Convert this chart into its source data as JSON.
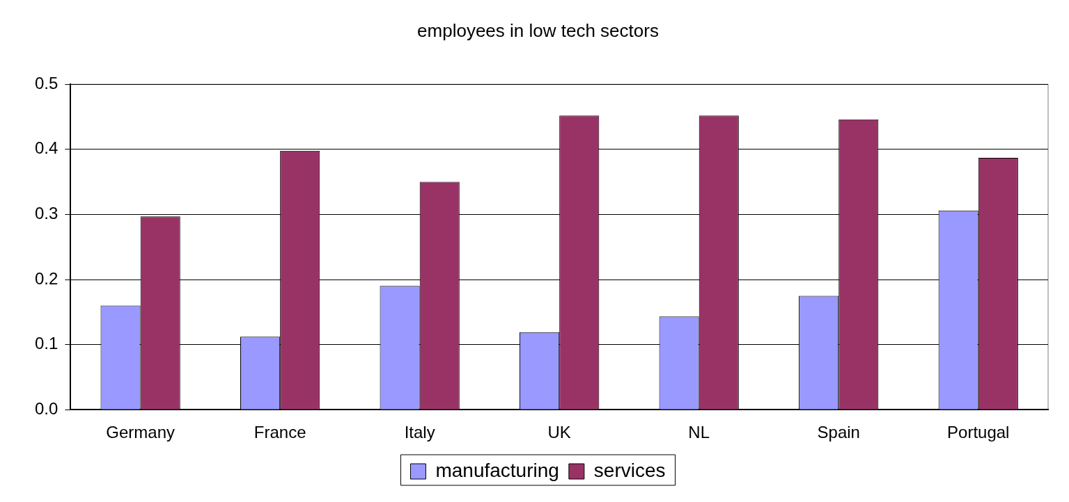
{
  "chart_data": {
    "type": "bar",
    "title": "employees in low tech sectors",
    "categories": [
      "Germany",
      "France",
      "Italy",
      "UK",
      "NL",
      "Spain",
      "Portugal"
    ],
    "series": [
      {
        "name": "manufacturing",
        "color": "#9999ff",
        "values": [
          0.16,
          0.112,
          0.19,
          0.119,
          0.143,
          0.175,
          0.306
        ]
      },
      {
        "name": "services",
        "color": "#993366",
        "values": [
          0.297,
          0.398,
          0.35,
          0.452,
          0.452,
          0.446,
          0.387
        ]
      }
    ],
    "ylim": [
      0,
      0.5
    ],
    "yticks": [
      {
        "value": 0,
        "label": "0.0"
      },
      0.1,
      0.2,
      0.3,
      0.4,
      0.5
    ],
    "grid": "y",
    "legend": "bottom"
  }
}
